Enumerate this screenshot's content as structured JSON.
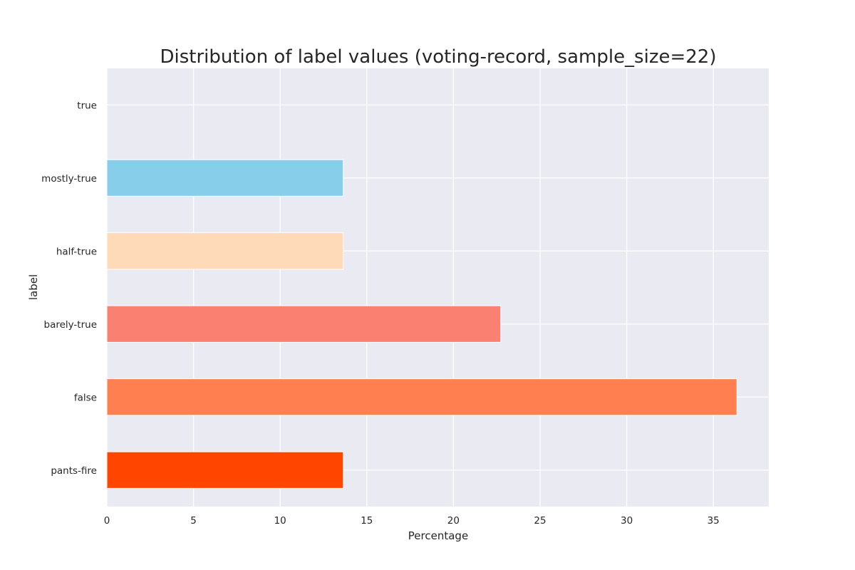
{
  "chart_data": {
    "type": "bar",
    "orientation": "horizontal",
    "title": "Distribution of label values (voting-record, sample_size=22)",
    "xlabel": "Percentage",
    "ylabel": "label",
    "xlim": [
      0,
      38.2
    ],
    "xticks": [
      0,
      5,
      10,
      15,
      20,
      25,
      30,
      35
    ],
    "grid": true,
    "background_color": "#eaeaf2",
    "categories": [
      "true",
      "mostly-true",
      "half-true",
      "barely-true",
      "false",
      "pants-fire"
    ],
    "values": [
      0,
      13.64,
      13.64,
      22.73,
      36.36,
      13.64
    ],
    "colors": [
      "#ffffff",
      "#87ceeb",
      "#ffdab9",
      "#fa8072",
      "#ff7f50",
      "#ff4500"
    ]
  }
}
